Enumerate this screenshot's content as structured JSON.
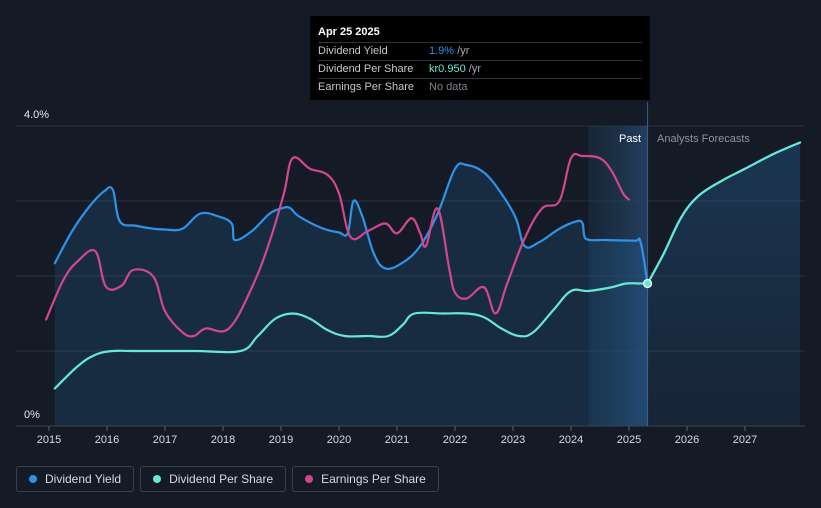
{
  "tooltip": {
    "date": "Apr 25 2025",
    "rows": [
      {
        "label": "Dividend Yield",
        "value": "1.9%",
        "unit": " /yr"
      },
      {
        "label": "Dividend Per Share",
        "value": "kr0.950",
        "unit": " /yr"
      },
      {
        "label": "Earnings Per Share",
        "value": "No data",
        "unit": ""
      }
    ]
  },
  "regions": {
    "past": "Past",
    "forecast": "Analysts Forecasts"
  },
  "legend": [
    {
      "label": "Dividend Yield",
      "color": "#2e93e8"
    },
    {
      "label": "Dividend Per Share",
      "color": "#67e8d6"
    },
    {
      "label": "Earnings Per Share",
      "color": "#d2468f"
    }
  ],
  "chart_data": {
    "type": "line",
    "x_ticks": [
      "2015",
      "2016",
      "2017",
      "2018",
      "2019",
      "2020",
      "2021",
      "2022",
      "2023",
      "2024",
      "2025",
      "2026",
      "2027"
    ],
    "y_ticks": [
      {
        "value": 0,
        "label": "0%"
      },
      {
        "value": 4,
        "label": "4.0%"
      }
    ],
    "ylim": [
      0,
      4
    ],
    "xlim": [
      2014.95,
      2027.95
    ],
    "past_end": 2025.32,
    "highlight_start": 2024.3,
    "grid": true,
    "series": [
      {
        "name": "Dividend Yield",
        "color": "#2e93e8",
        "fill": true,
        "points": [
          [
            2015.1,
            2.17
          ],
          [
            2015.4,
            2.6
          ],
          [
            2015.7,
            2.93
          ],
          [
            2015.95,
            3.13
          ],
          [
            2016.1,
            3.15
          ],
          [
            2016.22,
            2.73
          ],
          [
            2016.5,
            2.67
          ],
          [
            2016.8,
            2.63
          ],
          [
            2017.0,
            2.62
          ],
          [
            2017.3,
            2.63
          ],
          [
            2017.6,
            2.83
          ],
          [
            2017.9,
            2.8
          ],
          [
            2018.15,
            2.7
          ],
          [
            2018.2,
            2.48
          ],
          [
            2018.5,
            2.6
          ],
          [
            2018.8,
            2.83
          ],
          [
            2019.0,
            2.9
          ],
          [
            2019.15,
            2.91
          ],
          [
            2019.3,
            2.8
          ],
          [
            2019.7,
            2.64
          ],
          [
            2020.0,
            2.58
          ],
          [
            2020.15,
            2.57
          ],
          [
            2020.25,
            3.0
          ],
          [
            2020.4,
            2.8
          ],
          [
            2020.6,
            2.3
          ],
          [
            2020.8,
            2.1
          ],
          [
            2021.1,
            2.18
          ],
          [
            2021.4,
            2.4
          ],
          [
            2021.7,
            2.83
          ],
          [
            2022.0,
            3.43
          ],
          [
            2022.2,
            3.48
          ],
          [
            2022.5,
            3.38
          ],
          [
            2022.8,
            3.1
          ],
          [
            2023.05,
            2.77
          ],
          [
            2023.2,
            2.4
          ],
          [
            2023.45,
            2.45
          ],
          [
            2023.8,
            2.63
          ],
          [
            2024.1,
            2.73
          ],
          [
            2024.2,
            2.7
          ],
          [
            2024.25,
            2.5
          ],
          [
            2024.6,
            2.48
          ],
          [
            2025.1,
            2.47
          ],
          [
            2025.2,
            2.45
          ],
          [
            2025.32,
            1.9
          ]
        ]
      },
      {
        "name": "Dividend Per Share",
        "color": "#67e8d6",
        "fill": false,
        "points": [
          [
            2015.1,
            0.5
          ],
          [
            2015.5,
            0.8
          ],
          [
            2015.8,
            0.95
          ],
          [
            2016.1,
            1.0
          ],
          [
            2016.5,
            1.0
          ],
          [
            2017.5,
            1.0
          ],
          [
            2018.3,
            1.0
          ],
          [
            2018.6,
            1.2
          ],
          [
            2018.9,
            1.43
          ],
          [
            2019.2,
            1.5
          ],
          [
            2019.5,
            1.43
          ],
          [
            2019.8,
            1.28
          ],
          [
            2020.1,
            1.2
          ],
          [
            2020.5,
            1.2
          ],
          [
            2020.85,
            1.2
          ],
          [
            2021.1,
            1.35
          ],
          [
            2021.3,
            1.5
          ],
          [
            2021.8,
            1.5
          ],
          [
            2022.2,
            1.5
          ],
          [
            2022.5,
            1.45
          ],
          [
            2022.8,
            1.3
          ],
          [
            2023.1,
            1.2
          ],
          [
            2023.35,
            1.25
          ],
          [
            2023.7,
            1.55
          ],
          [
            2024.0,
            1.8
          ],
          [
            2024.3,
            1.8
          ],
          [
            2024.7,
            1.85
          ],
          [
            2024.95,
            1.9
          ],
          [
            2025.2,
            1.9
          ],
          [
            2025.32,
            1.9
          ]
        ]
      },
      {
        "name": "Earnings Per Share",
        "color": "#d2468f",
        "fill": false,
        "points": [
          [
            2014.95,
            1.42
          ],
          [
            2015.25,
            1.95
          ],
          [
            2015.5,
            2.2
          ],
          [
            2015.8,
            2.33
          ],
          [
            2015.98,
            1.86
          ],
          [
            2016.25,
            1.87
          ],
          [
            2016.45,
            2.08
          ],
          [
            2016.8,
            1.99
          ],
          [
            2017.0,
            1.53
          ],
          [
            2017.3,
            1.25
          ],
          [
            2017.5,
            1.2
          ],
          [
            2017.7,
            1.3
          ],
          [
            2018.1,
            1.3
          ],
          [
            2018.5,
            1.85
          ],
          [
            2018.8,
            2.45
          ],
          [
            2019.05,
            3.1
          ],
          [
            2019.2,
            3.57
          ],
          [
            2019.5,
            3.43
          ],
          [
            2019.8,
            3.35
          ],
          [
            2020.0,
            3.1
          ],
          [
            2020.2,
            2.52
          ],
          [
            2020.5,
            2.6
          ],
          [
            2020.8,
            2.7
          ],
          [
            2021.0,
            2.57
          ],
          [
            2021.25,
            2.77
          ],
          [
            2021.4,
            2.57
          ],
          [
            2021.5,
            2.4
          ],
          [
            2021.7,
            2.9
          ],
          [
            2021.9,
            2.1
          ],
          [
            2022.0,
            1.78
          ],
          [
            2022.2,
            1.7
          ],
          [
            2022.5,
            1.85
          ],
          [
            2022.7,
            1.5
          ],
          [
            2022.9,
            1.9
          ],
          [
            2023.2,
            2.5
          ],
          [
            2023.5,
            2.9
          ],
          [
            2023.8,
            3.0
          ],
          [
            2024.0,
            3.57
          ],
          [
            2024.2,
            3.6
          ],
          [
            2024.5,
            3.57
          ],
          [
            2024.7,
            3.4
          ],
          [
            2024.9,
            3.1
          ],
          [
            2025.0,
            3.02
          ]
        ]
      },
      {
        "name": "Dividend Yield (forecast)",
        "color": "#2e93e8",
        "fill": true,
        "forecast": true,
        "points": [
          [
            2025.32,
            1.9
          ],
          [
            2025.6,
            2.3
          ],
          [
            2025.9,
            2.78
          ],
          [
            2026.2,
            3.07
          ],
          [
            2026.6,
            3.27
          ],
          [
            2027.0,
            3.43
          ],
          [
            2027.5,
            3.63
          ],
          [
            2027.95,
            3.78
          ]
        ]
      },
      {
        "name": "Dividend Per Share (forecast)",
        "color": "#67e8d6",
        "fill": false,
        "forecast": true,
        "points": [
          [
            2025.32,
            1.9
          ],
          [
            2025.6,
            2.3
          ],
          [
            2025.9,
            2.78
          ],
          [
            2026.2,
            3.07
          ],
          [
            2026.6,
            3.27
          ],
          [
            2027.0,
            3.43
          ],
          [
            2027.5,
            3.63
          ],
          [
            2027.95,
            3.78
          ]
        ]
      }
    ],
    "marker": {
      "x": 2025.32,
      "y": 1.9
    }
  }
}
